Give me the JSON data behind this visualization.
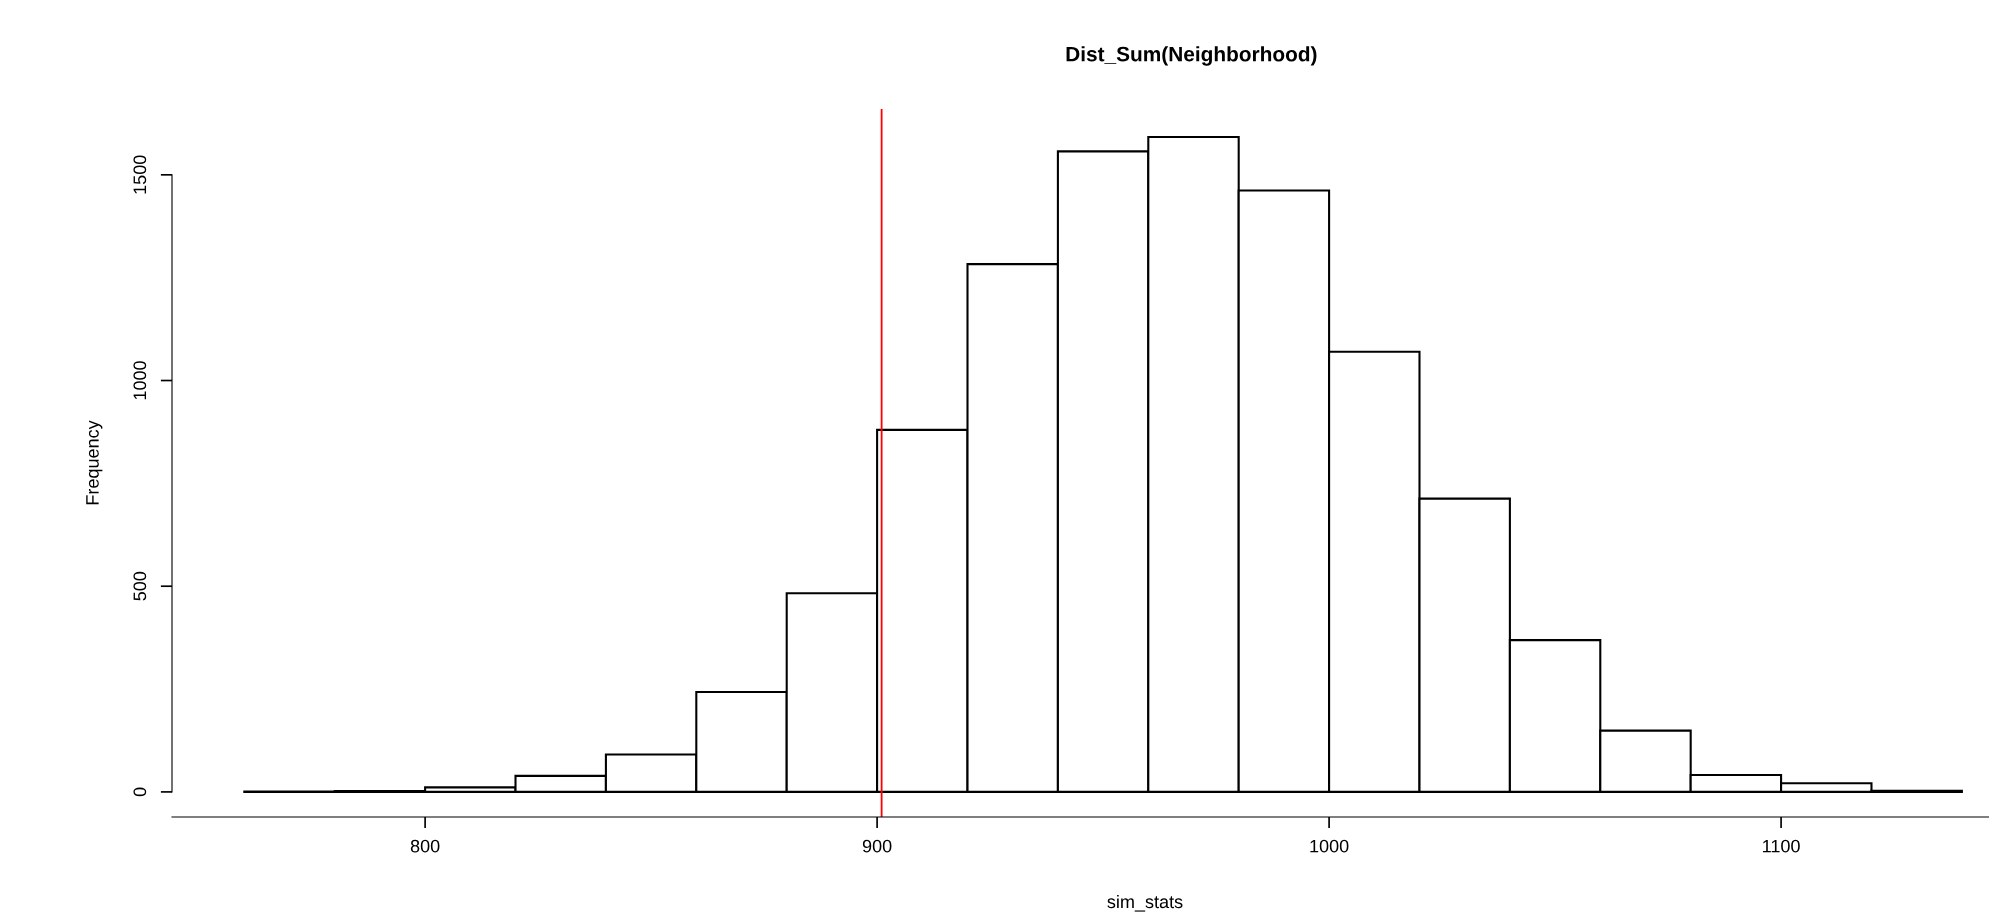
{
  "chart_data": {
    "type": "histogram",
    "title": "Dist_Sum(Neighborhood)",
    "xlabel": "sim_stats",
    "ylabel": "Frequency",
    "bins": [
      760,
      780,
      800,
      820,
      840,
      860,
      880,
      900,
      920,
      940,
      960,
      980,
      1000,
      1020,
      1040,
      1060,
      1080,
      1100,
      1120,
      1140
    ],
    "values": [
      1,
      2,
      11,
      39,
      91,
      243,
      483,
      880,
      1283,
      1557,
      1592,
      1462,
      1070,
      713,
      369,
      149,
      41,
      21,
      3
    ],
    "color": "#ffffff",
    "xlim": [
      744,
      1146
    ],
    "xticks": [
      800,
      900,
      1000,
      1100
    ],
    "ylim": [
      -61,
      1660
    ],
    "yticks": [
      0,
      500,
      1000,
      1500
    ],
    "ref_lines": [
      {
        "axis": "x",
        "value": 901,
        "color": "#ff0000"
      }
    ]
  }
}
